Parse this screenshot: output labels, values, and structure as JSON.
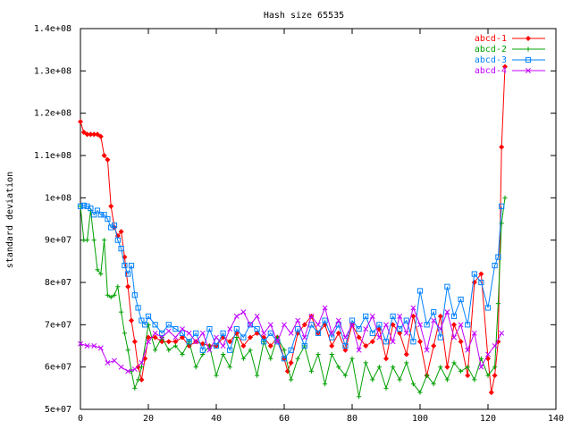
{
  "chart_data": {
    "type": "line",
    "title": "Hash size 65535",
    "xlabel": "",
    "ylabel": "standard deviation",
    "xlim": [
      0,
      140
    ],
    "ylim": [
      50000000,
      140000000
    ],
    "x_ticks": [
      0,
      20,
      40,
      60,
      80,
      100,
      120,
      140
    ],
    "x_tick_labels": [
      "0",
      "20",
      "40",
      "60",
      "80",
      "100",
      "120",
      "140"
    ],
    "y_ticks": [
      50000000,
      60000000,
      70000000,
      80000000,
      90000000,
      100000000,
      110000000,
      120000000,
      130000000,
      140000000
    ],
    "y_tick_labels": [
      "5e+07",
      "6e+07",
      "7e+07",
      "8e+07",
      "9e+07",
      "1e+08",
      "1.1e+08",
      "1.2e+08",
      "1.3e+08",
      "1.4e+08"
    ],
    "grid": false,
    "legend_position": "top-right",
    "series": [
      {
        "name": "abcd-1",
        "color": "#ff0000",
        "marker": "diamond",
        "points": [
          [
            0,
            118000000
          ],
          [
            1,
            115500000
          ],
          [
            2,
            115000000
          ],
          [
            3,
            115000000
          ],
          [
            4,
            115000000
          ],
          [
            5,
            115000000
          ],
          [
            6,
            114500000
          ],
          [
            7,
            110000000
          ],
          [
            8,
            109000000
          ],
          [
            9,
            98000000
          ],
          [
            10,
            93000000
          ],
          [
            11,
            91000000
          ],
          [
            12,
            92000000
          ],
          [
            13,
            86000000
          ],
          [
            14,
            79000000
          ],
          [
            15,
            71000000
          ],
          [
            16,
            66000000
          ],
          [
            17,
            60000000
          ],
          [
            18,
            57000000
          ],
          [
            19,
            62000000
          ],
          [
            20,
            67000000
          ],
          [
            22,
            67000000
          ],
          [
            24,
            66000000
          ],
          [
            26,
            66000000
          ],
          [
            28,
            66000000
          ],
          [
            30,
            67000000
          ],
          [
            32,
            65000000
          ],
          [
            34,
            66000000
          ],
          [
            36,
            65500000
          ],
          [
            38,
            65000000
          ],
          [
            40,
            65000000
          ],
          [
            42,
            67000000
          ],
          [
            44,
            66000000
          ],
          [
            46,
            68000000
          ],
          [
            48,
            65000000
          ],
          [
            50,
            67000000
          ],
          [
            52,
            68000000
          ],
          [
            54,
            67000000
          ],
          [
            56,
            65000000
          ],
          [
            58,
            67000000
          ],
          [
            60,
            62000000
          ],
          [
            61,
            59000000
          ],
          [
            62,
            61000000
          ],
          [
            64,
            68000000
          ],
          [
            66,
            70000000
          ],
          [
            68,
            72000000
          ],
          [
            70,
            68000000
          ],
          [
            72,
            70000000
          ],
          [
            74,
            65000000
          ],
          [
            76,
            68000000
          ],
          [
            78,
            64000000
          ],
          [
            80,
            70000000
          ],
          [
            82,
            67000000
          ],
          [
            84,
            65000000
          ],
          [
            86,
            66000000
          ],
          [
            88,
            69000000
          ],
          [
            90,
            62000000
          ],
          [
            92,
            70000000
          ],
          [
            94,
            68000000
          ],
          [
            96,
            63000000
          ],
          [
            98,
            72000000
          ],
          [
            100,
            66000000
          ],
          [
            102,
            58000000
          ],
          [
            104,
            65000000
          ],
          [
            106,
            72000000
          ],
          [
            108,
            60000000
          ],
          [
            110,
            70000000
          ],
          [
            112,
            66000000
          ],
          [
            114,
            58000000
          ],
          [
            116,
            80000000
          ],
          [
            118,
            82000000
          ],
          [
            120,
            62000000
          ],
          [
            121,
            54000000
          ],
          [
            122,
            58000000
          ],
          [
            123,
            66000000
          ],
          [
            124,
            112000000
          ],
          [
            125,
            131000000
          ]
        ]
      },
      {
        "name": "abcd-2",
        "color": "#00a000",
        "marker": "plus",
        "points": [
          [
            0,
            98000000
          ],
          [
            1,
            90000000
          ],
          [
            2,
            90000000
          ],
          [
            3,
            97000000
          ],
          [
            4,
            90000000
          ],
          [
            5,
            83000000
          ],
          [
            6,
            82000000
          ],
          [
            7,
            90000000
          ],
          [
            8,
            77000000
          ],
          [
            9,
            76500000
          ],
          [
            10,
            77000000
          ],
          [
            11,
            79000000
          ],
          [
            12,
            73000000
          ],
          [
            13,
            68000000
          ],
          [
            14,
            64000000
          ],
          [
            15,
            59000000
          ],
          [
            16,
            55000000
          ],
          [
            17,
            57000000
          ],
          [
            18,
            60000000
          ],
          [
            20,
            70000000
          ],
          [
            22,
            64000000
          ],
          [
            24,
            67000000
          ],
          [
            26,
            64000000
          ],
          [
            28,
            65000000
          ],
          [
            30,
            63000000
          ],
          [
            32,
            66000000
          ],
          [
            34,
            60000000
          ],
          [
            36,
            63000000
          ],
          [
            38,
            65000000
          ],
          [
            40,
            58000000
          ],
          [
            42,
            63000000
          ],
          [
            44,
            60000000
          ],
          [
            46,
            67000000
          ],
          [
            48,
            62000000
          ],
          [
            50,
            64000000
          ],
          [
            52,
            58000000
          ],
          [
            54,
            66000000
          ],
          [
            56,
            62000000
          ],
          [
            58,
            67000000
          ],
          [
            60,
            64000000
          ],
          [
            62,
            57000000
          ],
          [
            64,
            62000000
          ],
          [
            66,
            65000000
          ],
          [
            68,
            59000000
          ],
          [
            70,
            63000000
          ],
          [
            72,
            56000000
          ],
          [
            74,
            63000000
          ],
          [
            76,
            60000000
          ],
          [
            78,
            58000000
          ],
          [
            80,
            62000000
          ],
          [
            82,
            53000000
          ],
          [
            84,
            61000000
          ],
          [
            86,
            57000000
          ],
          [
            88,
            60000000
          ],
          [
            90,
            55000000
          ],
          [
            92,
            60000000
          ],
          [
            94,
            57000000
          ],
          [
            96,
            61000000
          ],
          [
            98,
            56000000
          ],
          [
            100,
            54000000
          ],
          [
            102,
            58000000
          ],
          [
            104,
            56000000
          ],
          [
            106,
            60000000
          ],
          [
            108,
            57000000
          ],
          [
            110,
            61000000
          ],
          [
            112,
            59000000
          ],
          [
            114,
            60000000
          ],
          [
            116,
            57000000
          ],
          [
            118,
            62000000
          ],
          [
            120,
            58000000
          ],
          [
            122,
            60000000
          ],
          [
            123,
            75000000
          ],
          [
            124,
            94000000
          ],
          [
            125,
            100000000
          ]
        ]
      },
      {
        "name": "abcd-3",
        "color": "#0080ff",
        "marker": "square",
        "points": [
          [
            0,
            98000000
          ],
          [
            1,
            98200000
          ],
          [
            2,
            98000000
          ],
          [
            3,
            97500000
          ],
          [
            4,
            96000000
          ],
          [
            5,
            97000000
          ],
          [
            6,
            96000000
          ],
          [
            7,
            96000000
          ],
          [
            8,
            95000000
          ],
          [
            9,
            93000000
          ],
          [
            10,
            93500000
          ],
          [
            11,
            90000000
          ],
          [
            12,
            88000000
          ],
          [
            13,
            84000000
          ],
          [
            14,
            82000000
          ],
          [
            15,
            84000000
          ],
          [
            16,
            77000000
          ],
          [
            17,
            74000000
          ],
          [
            18,
            71000000
          ],
          [
            19,
            70000000
          ],
          [
            20,
            72000000
          ],
          [
            22,
            70000000
          ],
          [
            24,
            68000000
          ],
          [
            26,
            70000000
          ],
          [
            28,
            69000000
          ],
          [
            30,
            68000000
          ],
          [
            32,
            66000000
          ],
          [
            34,
            68000000
          ],
          [
            36,
            64000000
          ],
          [
            38,
            69000000
          ],
          [
            40,
            65000000
          ],
          [
            42,
            68000000
          ],
          [
            44,
            64000000
          ],
          [
            46,
            69000000
          ],
          [
            48,
            67000000
          ],
          [
            50,
            70000000
          ],
          [
            52,
            69000000
          ],
          [
            54,
            66000000
          ],
          [
            56,
            68000000
          ],
          [
            58,
            66000000
          ],
          [
            60,
            62000000
          ],
          [
            62,
            64000000
          ],
          [
            64,
            69000000
          ],
          [
            66,
            65000000
          ],
          [
            68,
            70000000
          ],
          [
            70,
            68000000
          ],
          [
            72,
            71000000
          ],
          [
            74,
            67000000
          ],
          [
            76,
            70000000
          ],
          [
            78,
            65000000
          ],
          [
            80,
            71000000
          ],
          [
            82,
            69000000
          ],
          [
            84,
            72000000
          ],
          [
            86,
            68000000
          ],
          [
            88,
            70000000
          ],
          [
            90,
            66000000
          ],
          [
            92,
            72000000
          ],
          [
            94,
            69000000
          ],
          [
            96,
            71000000
          ],
          [
            98,
            66000000
          ],
          [
            100,
            78000000
          ],
          [
            102,
            70000000
          ],
          [
            104,
            73000000
          ],
          [
            106,
            67000000
          ],
          [
            108,
            79000000
          ],
          [
            110,
            72000000
          ],
          [
            112,
            76000000
          ],
          [
            114,
            70000000
          ],
          [
            116,
            82000000
          ],
          [
            118,
            80000000
          ],
          [
            120,
            74000000
          ],
          [
            122,
            84000000
          ],
          [
            123,
            86000000
          ],
          [
            124,
            98000000
          ]
        ]
      },
      {
        "name": "abcd-4",
        "color": "#c000ff",
        "marker": "cross",
        "points": [
          [
            0,
            65500000
          ],
          [
            2,
            65000000
          ],
          [
            4,
            65000000
          ],
          [
            6,
            64500000
          ],
          [
            8,
            61000000
          ],
          [
            10,
            61500000
          ],
          [
            12,
            60000000
          ],
          [
            14,
            59000000
          ],
          [
            16,
            59500000
          ],
          [
            18,
            61000000
          ],
          [
            20,
            66000000
          ],
          [
            22,
            68000000
          ],
          [
            24,
            67000000
          ],
          [
            26,
            68500000
          ],
          [
            28,
            67000000
          ],
          [
            30,
            69000000
          ],
          [
            32,
            68000000
          ],
          [
            34,
            66000000
          ],
          [
            36,
            68000000
          ],
          [
            38,
            64000000
          ],
          [
            40,
            67000000
          ],
          [
            42,
            65000000
          ],
          [
            44,
            69000000
          ],
          [
            46,
            72000000
          ],
          [
            48,
            73000000
          ],
          [
            50,
            70000000
          ],
          [
            52,
            72000000
          ],
          [
            54,
            68000000
          ],
          [
            56,
            70000000
          ],
          [
            58,
            66000000
          ],
          [
            60,
            70000000
          ],
          [
            62,
            68000000
          ],
          [
            64,
            71000000
          ],
          [
            66,
            67000000
          ],
          [
            68,
            72000000
          ],
          [
            70,
            70000000
          ],
          [
            72,
            74000000
          ],
          [
            74,
            68000000
          ],
          [
            76,
            71000000
          ],
          [
            78,
            67000000
          ],
          [
            80,
            70000000
          ],
          [
            82,
            64000000
          ],
          [
            84,
            69000000
          ],
          [
            86,
            72000000
          ],
          [
            88,
            67000000
          ],
          [
            90,
            70000000
          ],
          [
            92,
            66000000
          ],
          [
            94,
            72000000
          ],
          [
            96,
            68000000
          ],
          [
            98,
            74000000
          ],
          [
            100,
            70000000
          ],
          [
            102,
            64000000
          ],
          [
            104,
            71000000
          ],
          [
            106,
            69000000
          ],
          [
            108,
            73000000
          ],
          [
            110,
            67000000
          ],
          [
            112,
            70000000
          ],
          [
            114,
            64000000
          ],
          [
            116,
            68000000
          ],
          [
            118,
            60000000
          ],
          [
            120,
            63000000
          ],
          [
            122,
            65000000
          ],
          [
            124,
            68000000
          ]
        ]
      }
    ]
  }
}
